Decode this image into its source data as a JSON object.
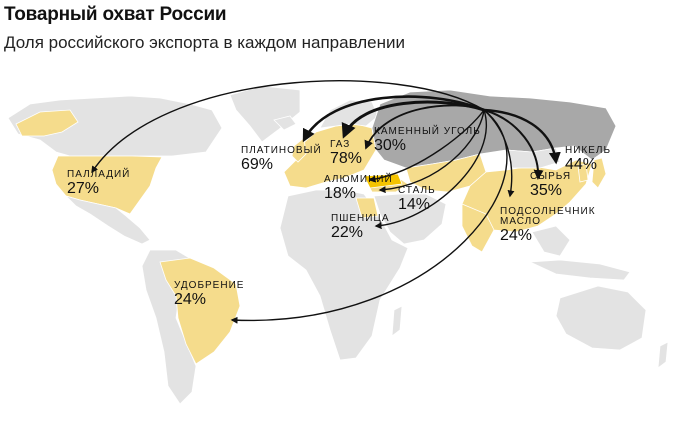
{
  "header": {
    "title": "Товарный охват России",
    "subtitle": "Доля российского экспорта в каждом направлении"
  },
  "colors": {
    "land": "#e3e3e3",
    "country_border": "#ffffff",
    "russia": "#a8a8a8",
    "importer": "#f5dc8c",
    "highlight": "#f5c400",
    "arrow": "#111111"
  },
  "map_legend_labels": [
    {
      "id": "palladium",
      "name": "ПАЛЛАДИЙ",
      "value": "27%"
    },
    {
      "id": "platinum",
      "name": "ПЛАТИНОВЫЙ",
      "value": "69%"
    },
    {
      "id": "gas",
      "name": "ГАЗ",
      "value": "78%"
    },
    {
      "id": "coal",
      "name": "КАМЕННЫЙ  УГОЛЬ",
      "value": "30%"
    },
    {
      "id": "aluminium",
      "name": "АЛЮМИНИЙ",
      "value": "18%"
    },
    {
      "id": "steel",
      "name": "СТАЛЬ",
      "value": "14%"
    },
    {
      "id": "wheat",
      "name": "ПШЕНИЦА",
      "value": "22%"
    },
    {
      "id": "nickel",
      "name": "НИКЕЛЬ",
      "value": "44%"
    },
    {
      "id": "crude",
      "name": "СЫРЬЯ",
      "value": "35%"
    },
    {
      "id": "sunflower",
      "name": "ПОДСОЛНЕЧНИК",
      "name2": "МАСЛО",
      "value": "24%"
    },
    {
      "id": "fertilizer",
      "name": "УДОБРЕНИЕ",
      "value": "24%"
    }
  ]
}
